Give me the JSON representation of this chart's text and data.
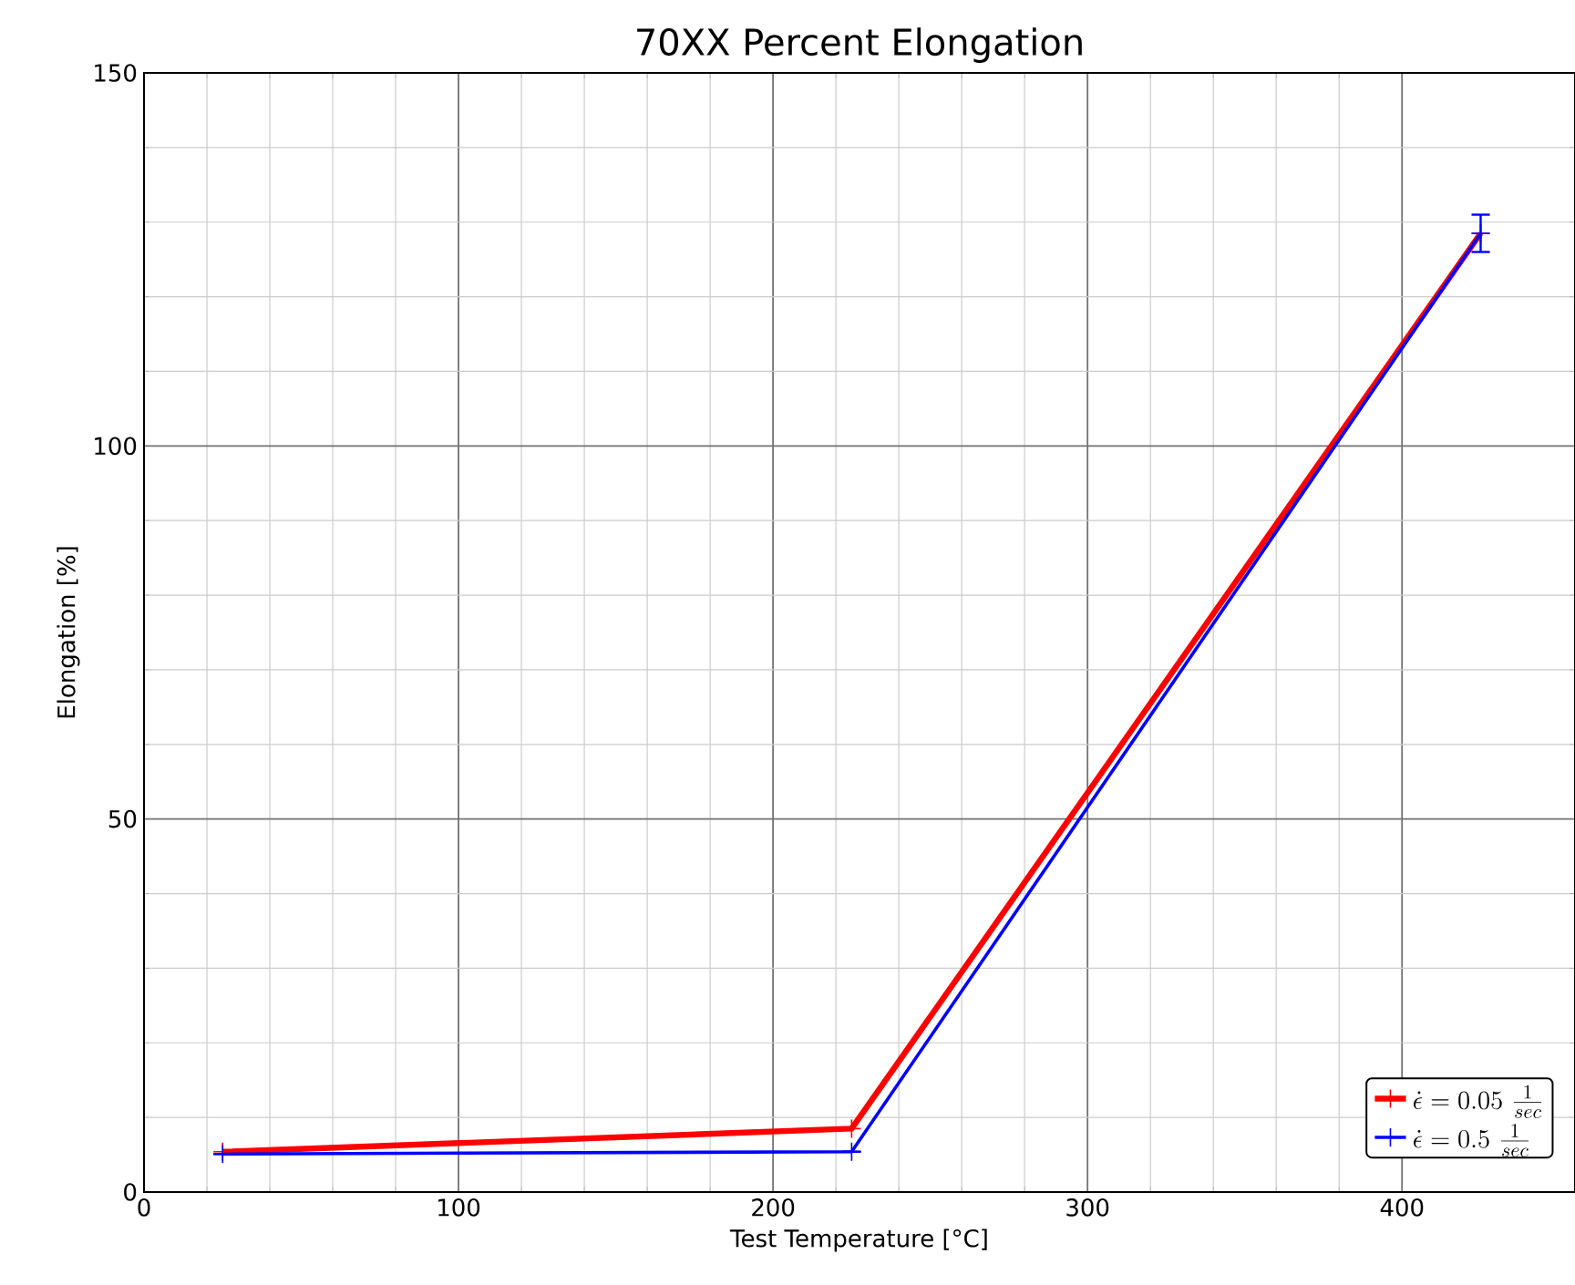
{
  "chart_data": {
    "type": "line",
    "title": "70XX Percent Elongation",
    "xlabel": "Test Temperature [°C]",
    "ylabel": "Elongation [%]",
    "x": [
      25,
      225,
      425
    ],
    "series": [
      {
        "name": "\\dot{\\epsilon}=0.05\\ \\frac{1}{sec}",
        "color": "#ff0000",
        "values": [
          5.4,
          8.5,
          128.5
        ]
      },
      {
        "name": "\\dot{\\epsilon}=0.5\\ \\frac{1}{sec}",
        "color": "#0000ff",
        "values": [
          5.1,
          5.4,
          128.5
        ],
        "errors": [
          null,
          null,
          2.5
        ]
      }
    ],
    "xlim": [
      0,
      455
    ],
    "ylim": [
      0,
      150
    ],
    "xticks": [
      0,
      100,
      200,
      300,
      400
    ],
    "yticks": [
      0,
      50,
      100,
      150
    ],
    "grid": true,
    "legend": "bottom right",
    "marker": "cross",
    "line_style": "solid"
  }
}
